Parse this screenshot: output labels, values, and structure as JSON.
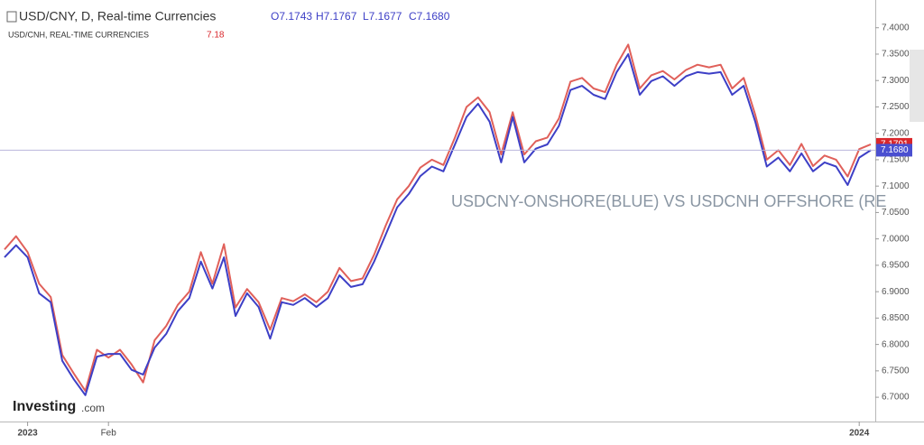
{
  "chart_data": {
    "type": "line",
    "title": "USD/CNY, D, Real-time Currencies",
    "ohlc": [
      "O7.1743",
      "H7.1767",
      "L7.1677",
      "C7.1680"
    ],
    "subtitle": "USD/CNH, REAL-TIME CURRENCIES",
    "subtitle_value": "7.18",
    "annotation": "USDCNY-ONSHORE(BLUE) VS USDCNH OFFSHORE (RE",
    "watermark": [
      "Investing",
      ".com"
    ],
    "categories": [
      null,
      null,
      "2023",
      null,
      null,
      null,
      null,
      null,
      null,
      "Feb",
      null,
      null,
      null,
      null,
      null,
      null,
      null,
      null,
      null,
      null,
      null,
      null,
      null,
      null,
      null,
      null,
      null,
      null,
      null,
      null,
      null,
      null,
      null,
      null,
      null,
      null,
      null,
      null,
      null,
      null,
      null,
      null,
      null,
      null,
      null,
      null,
      null,
      null,
      null,
      null,
      null,
      null,
      null,
      null,
      null,
      null,
      null,
      null,
      null,
      null,
      null,
      null,
      null,
      null,
      null,
      null,
      null,
      null,
      null,
      null,
      null,
      null,
      null,
      null,
      "2024",
      null
    ],
    "series": [
      {
        "name": "USD/CNY",
        "color": "#3d3fc6",
        "values": [
          6.965,
          6.988,
          6.965,
          6.897,
          6.88,
          6.769,
          6.734,
          6.704,
          6.777,
          6.782,
          6.782,
          6.752,
          6.743,
          6.794,
          6.82,
          6.863,
          6.888,
          6.957,
          6.906,
          6.965,
          6.854,
          6.897,
          6.871,
          6.811,
          6.88,
          6.875,
          6.888,
          6.871,
          6.888,
          6.931,
          6.909,
          6.914,
          6.957,
          7.008,
          7.06,
          7.085,
          7.119,
          7.137,
          7.128,
          7.179,
          7.231,
          7.256,
          7.222,
          7.145,
          7.231,
          7.145,
          7.171,
          7.179,
          7.214,
          7.282,
          7.29,
          7.273,
          7.265,
          7.316,
          7.35,
          7.273,
          7.299,
          7.308,
          7.29,
          7.308,
          7.316,
          7.313,
          7.316,
          7.273,
          7.29,
          7.222,
          7.137,
          7.154,
          7.128,
          7.162,
          7.128,
          7.145,
          7.137,
          7.102,
          7.154,
          7.168
        ]
      },
      {
        "name": "USD/CNH",
        "color": "#e0605a",
        "values": [
          6.98,
          7.005,
          6.975,
          6.915,
          6.89,
          6.78,
          6.745,
          6.712,
          6.79,
          6.775,
          6.79,
          6.762,
          6.728,
          6.808,
          6.835,
          6.875,
          6.9,
          6.975,
          6.915,
          6.99,
          6.87,
          6.905,
          6.88,
          6.828,
          6.888,
          6.882,
          6.895,
          6.88,
          6.9,
          6.945,
          6.92,
          6.925,
          6.97,
          7.025,
          7.075,
          7.1,
          7.135,
          7.15,
          7.14,
          7.192,
          7.25,
          7.268,
          7.24,
          7.16,
          7.24,
          7.16,
          7.185,
          7.192,
          7.228,
          7.298,
          7.305,
          7.285,
          7.278,
          7.33,
          7.368,
          7.285,
          7.31,
          7.318,
          7.302,
          7.32,
          7.33,
          7.325,
          7.33,
          7.285,
          7.305,
          7.235,
          7.15,
          7.168,
          7.14,
          7.18,
          7.138,
          7.158,
          7.15,
          7.118,
          7.17,
          7.1791
        ]
      }
    ],
    "ylim": [
      6.654,
      7.444
    ],
    "yticks": [
      {
        "value": 6.7,
        "label": "6.7000"
      },
      {
        "value": 6.75,
        "label": "6.7500"
      },
      {
        "value": 6.8,
        "label": "6.8000"
      },
      {
        "value": 6.85,
        "label": "6.8500"
      },
      {
        "value": 6.9,
        "label": "6.9000"
      },
      {
        "value": 6.95,
        "label": "6.9500"
      },
      {
        "value": 7.0,
        "label": "7.0000"
      },
      {
        "value": 7.05,
        "label": "7.0500"
      },
      {
        "value": 7.1,
        "label": "7.1000"
      },
      {
        "value": 7.15,
        "label": "7.1500"
      },
      {
        "value": 7.2,
        "label": "7.2000"
      },
      {
        "value": 7.25,
        "label": "7.2500"
      },
      {
        "value": 7.3,
        "label": "7.3000"
      },
      {
        "value": 7.35,
        "label": "7.3500"
      },
      {
        "value": 7.4,
        "label": "7.4000"
      }
    ],
    "price_labels": [
      {
        "value": 7.1791,
        "label": "7.1791",
        "color": "#d9262b"
      },
      {
        "value": 7.168,
        "label": "7.1680",
        "color": "#4a4fd0"
      }
    ]
  }
}
